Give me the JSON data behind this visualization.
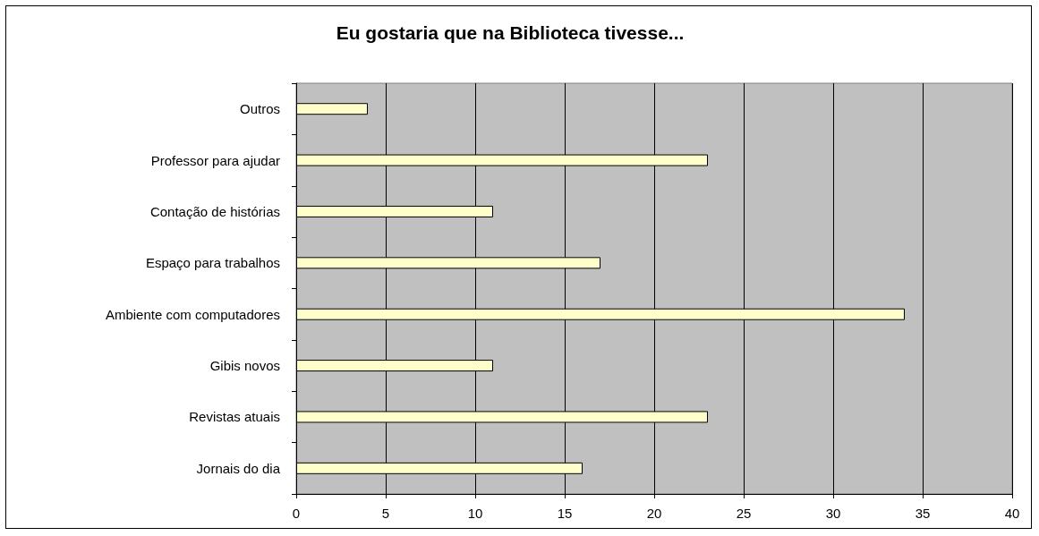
{
  "chart_data": {
    "type": "bar",
    "orientation": "horizontal",
    "title": "Eu gostaria que na Biblioteca tivesse...",
    "categories": [
      "Outros",
      "Professor para ajudar",
      "Contação de histórias",
      "Espaço para trabalhos",
      "Ambiente com computadores",
      "Gibis novos",
      "Revistas atuais",
      "Jornais do dia"
    ],
    "values": [
      4,
      23,
      11,
      17,
      34,
      11,
      23,
      16
    ],
    "color": "#ffffcc",
    "xlim": [
      0,
      40
    ],
    "xticks": [
      0,
      5,
      10,
      15,
      20,
      25,
      30,
      35,
      40
    ],
    "grid": "x"
  }
}
